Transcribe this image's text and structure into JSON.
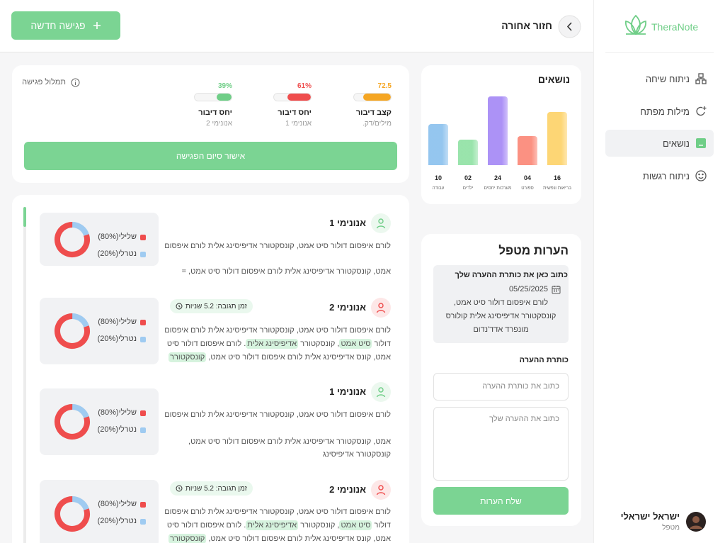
{
  "sidebar": {
    "logo": "TheraNote",
    "nav": [
      "ניתוח שיחה",
      "מילות מפתח",
      "נושאים",
      "ניתוח רגשות"
    ],
    "user": {
      "name": "ישראל ישראלי",
      "role": "מטפל"
    }
  },
  "header": {
    "back": "חזור אחורה",
    "new_session": "פגישה חדשה"
  },
  "summary": {
    "title": "תמלול פגישה",
    "confirm": "אישור סיום הפגישה",
    "stats": [
      {
        "value": 72.5,
        "label": "קצב דיבור",
        "sub": "מילים/דק.",
        "color": "#f5a623"
      },
      {
        "value": 61,
        "value_label": "61%",
        "label": "יחס דיבור",
        "sub": "אנונימי 1",
        "color": "#ef4d4d"
      },
      {
        "value": 39,
        "value_label": "39%",
        "label": "יחס דיבור",
        "sub": "אנונימי 2",
        "color": "#6fce87"
      }
    ]
  },
  "topics": {
    "title": "נושאים",
    "categories": [
      "בריאות ונפשית",
      "ספורט",
      "מערכות יחסים",
      "ילדים",
      "עבודה"
    ],
    "values": [
      16,
      4,
      24,
      2,
      10
    ],
    "value_labels": [
      "16",
      "04",
      "24",
      "02",
      "10"
    ],
    "colors": [
      "#fdd46e",
      "#fb8b7b",
      "#a88cf6",
      "#94e2a7",
      "#8fc3ee"
    ]
  },
  "transcript": {
    "entries": [
      {
        "speaker": "אנונימי 1",
        "color": "#6fce87",
        "lines": [
          [
            {
              "text": "לורם איפסום דולור סיט אמט, קונסקטורר אדיפיסינג אלית לורם איפסום"
            }
          ],
          [
            {
              "text": "אמט, קונסקטורר אדיפיסינג אלית לורם איפסום דולור סיט אמט, ="
            }
          ]
        ],
        "sentiment": {
          "negative": {
            "label": "שלילי(80%)",
            "value": 80
          },
          "neutral": {
            "label": "נטרלי(20%)",
            "value": 20
          }
        }
      },
      {
        "speaker": "אנונימי 2",
        "color": "#ef4d4d",
        "response_time": "זמן תגובה: 5.2 שניות",
        "lines": [
          [
            {
              "text": "לורם איפסום דולור סיט אמט, קונסקטורר אדיפיסינג אלית לורם איפסום"
            }
          ],
          [
            {
              "text": "דולור "
            },
            {
              "text": "סיט אמט",
              "highlight": true
            },
            {
              "text": ", קונסקטורר "
            },
            {
              "text": "אדיפיסינג אלית",
              "highlight": true
            },
            {
              "text": ". לורם איפסום דולור סיט"
            }
          ],
          [
            {
              "text": "אמט, קונס אדיפיסינג אלית לורם איפסום דולור סיט אמט, "
            },
            {
              "text": "קונסקטורר",
              "highlight": true
            }
          ]
        ],
        "sentiment": {
          "negative": {
            "label": "שלילי(80%)",
            "value": 80
          },
          "neutral": {
            "label": "נטרלי(20%)",
            "value": 20
          }
        }
      },
      {
        "speaker": "אנונימי 1",
        "color": "#6fce87",
        "lines": [
          [
            {
              "text": "לורם איפסום דולור סיט אמט, קונסקטורר אדיפיסינג אלית לורם איפסום"
            }
          ],
          [
            {
              "text": "אמט, קונסקטורר אדיפיסינג אלית לורם איפסום דולור סיט אמט,"
            }
          ],
          [
            {
              "text": "קונסקטורר אדיפיסינג"
            }
          ]
        ],
        "sentiment": {
          "negative": {
            "label": "שלילי(80%)",
            "value": 80
          },
          "neutral": {
            "label": "נטרלי(20%)",
            "value": 20
          }
        }
      },
      {
        "speaker": "אנונימי 2",
        "color": "#ef4d4d",
        "response_time": "זמן תגובה: 5.2 שניות",
        "lines": [
          [
            {
              "text": "לורם איפסום דולור סיט אמט, קונסקטורר אדיפיסינג אלית לורם איפסום"
            }
          ],
          [
            {
              "text": "דולור "
            },
            {
              "text": "סיט אמט",
              "highlight": true
            },
            {
              "text": ", קונסקטורר "
            },
            {
              "text": "אדיפיסינג אלית",
              "highlight": true
            },
            {
              "text": ". לורם איפסום דולור סיט"
            }
          ],
          [
            {
              "text": "אמט, קונס אדיפיסינג אלית לורם איפסום דולור סיט אמט, "
            },
            {
              "text": "קונסקטורר",
              "highlight": true
            }
          ]
        ],
        "sentiment": {
          "negative": {
            "label": "שלילי(80%)",
            "value": 80
          },
          "neutral": {
            "label": "נטרלי(20%)",
            "value": 20
          }
        }
      }
    ]
  },
  "notes": {
    "title": "הערות מטפל",
    "saved": {
      "title": "כתוב כאן את כותרת ההערה שלך",
      "date": "05/25/2025",
      "lines": [
        "לורם איפסום דולור סיט אמט,",
        "קונסקטורר אדיפיסינג אלית קולורס",
        "מונפרד אדד'נדום"
      ]
    },
    "field_label": "כותרת ההערה",
    "title_placeholder": "כתוב את כותרת ההערה",
    "body_placeholder": "כתוב את ההערה שלך",
    "submit": "שלח הערות"
  }
}
